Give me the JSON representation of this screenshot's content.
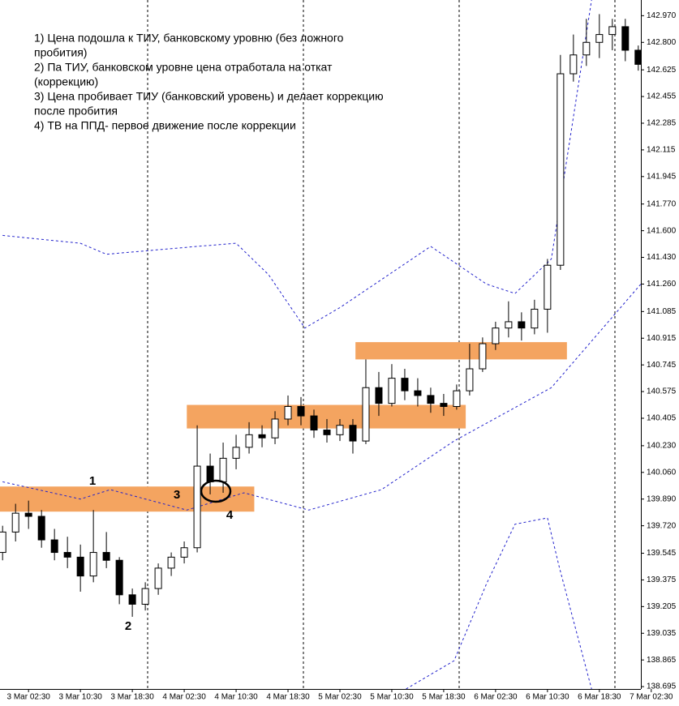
{
  "chart_data": {
    "type": "candlestick",
    "notes": [
      "1) Цена подошла к ТИУ, банковскому уровню (без ложного",
      "пробития)",
      "2) Па ТИУ, банковском уровне цена отработала на откат",
      "(коррекцию)",
      "3) Цена пробивает ТИУ (банковский уровень) и делает коррекцию",
      "после пробития",
      "4) ТВ на ППД- первое движение после коррекции"
    ],
    "markers": [
      "1",
      "2",
      "3",
      "4"
    ],
    "open": [
      139.55,
      139.68,
      139.8,
      139.78,
      139.63,
      139.55,
      139.52,
      139.4,
      139.55,
      139.5,
      139.28,
      139.22,
      139.32,
      139.45,
      139.52,
      139.58,
      140.1,
      140.0,
      140.15,
      140.22,
      140.3,
      140.28,
      140.4,
      140.48,
      140.42,
      140.33,
      140.3,
      140.36,
      140.26,
      140.6,
      140.5,
      140.66,
      140.58,
      140.55,
      140.5,
      140.48,
      140.58,
      140.72,
      140.88,
      140.98,
      141.02,
      140.98,
      141.1,
      141.38,
      142.6,
      142.72,
      142.8,
      142.85,
      142.9,
      142.75
    ],
    "high": [
      139.72,
      139.86,
      139.88,
      139.82,
      139.7,
      139.65,
      139.6,
      139.82,
      139.68,
      139.52,
      139.32,
      139.36,
      139.48,
      139.55,
      139.62,
      140.36,
      140.18,
      140.25,
      140.3,
      140.38,
      140.36,
      140.45,
      140.55,
      140.54,
      140.46,
      140.4,
      140.4,
      140.4,
      140.78,
      140.7,
      140.75,
      140.72,
      140.66,
      140.6,
      140.56,
      140.62,
      140.88,
      140.92,
      141.02,
      141.15,
      141.08,
      141.16,
      141.42,
      142.72,
      142.85,
      142.95,
      142.98,
      142.95,
      142.95,
      142.78
    ],
    "low": [
      139.5,
      139.62,
      139.7,
      139.58,
      139.5,
      139.45,
      139.3,
      139.36,
      139.45,
      139.22,
      139.14,
      139.18,
      139.28,
      139.4,
      139.48,
      139.55,
      139.92,
      139.93,
      140.08,
      140.18,
      140.22,
      140.24,
      140.36,
      140.36,
      140.28,
      140.25,
      140.26,
      140.18,
      140.24,
      140.42,
      140.48,
      140.52,
      140.48,
      140.44,
      140.42,
      140.46,
      140.55,
      140.7,
      140.84,
      140.92,
      140.9,
      140.94,
      140.95,
      141.35,
      142.55,
      142.65,
      142.7,
      142.75,
      142.68,
      142.62
    ],
    "close": [
      139.68,
      139.8,
      139.78,
      139.63,
      139.55,
      139.52,
      139.4,
      139.55,
      139.5,
      139.28,
      139.22,
      139.32,
      139.45,
      139.52,
      139.58,
      140.1,
      140.0,
      140.15,
      140.22,
      140.3,
      140.28,
      140.4,
      140.48,
      140.42,
      140.33,
      140.3,
      140.36,
      140.26,
      140.6,
      140.5,
      140.66,
      140.58,
      140.55,
      140.5,
      140.48,
      140.58,
      140.72,
      140.88,
      140.98,
      141.02,
      140.98,
      141.1,
      141.38,
      142.6,
      142.72,
      142.8,
      142.85,
      142.9,
      142.75,
      142.66
    ],
    "bands": [
      {
        "color": "#2222cc",
        "x": [
          0,
          6,
          8,
          15,
          18,
          20.5,
          23.3,
          26,
          33,
          37.3,
          39.5,
          42.3,
          45.4
        ],
        "values": [
          141.57,
          141.52,
          141.45,
          141.5,
          141.52,
          141.32,
          140.98,
          141.11,
          141.5,
          141.26,
          141.2,
          141.42,
          143.07
        ]
      },
      {
        "color": "#2222cc",
        "x": [
          0,
          6,
          8.3,
          14.2,
          18.6,
          23.6,
          29.2,
          34.8,
          42.3,
          49.2
        ],
        "values": [
          140.0,
          139.89,
          139.95,
          139.82,
          139.93,
          139.82,
          139.95,
          140.26,
          140.6,
          141.26
        ]
      },
      {
        "color": "#2222cc",
        "x": [
          31.1,
          34.8,
          37.3,
          39.5,
          42,
          42.9,
          45.4
        ],
        "values": [
          138.68,
          138.86,
          139.35,
          139.73,
          139.77,
          139.46,
          138.68
        ]
      }
    ],
    "zones": [
      {
        "color": "#f4a460",
        "from": 139.81,
        "to": 139.97,
        "start": -0.2,
        "end": 19.4
      },
      {
        "color": "#f4a460",
        "from": 140.34,
        "to": 140.49,
        "start": 14.2,
        "end": 35.7
      },
      {
        "color": "#f4a460",
        "from": 140.78,
        "to": 140.89,
        "start": 27.2,
        "end": 43.5
      }
    ],
    "xlim": [
      -0.2,
      49.2
    ],
    "ylim": [
      138.68,
      143.07
    ],
    "xticks": [
      {
        "value": 2,
        "label": "3 Mar 02:30"
      },
      {
        "value": 6,
        "label": "3 Mar 10:30"
      },
      {
        "value": 10,
        "label": "3 Mar 18:30"
      },
      {
        "value": 14,
        "label": "4 Mar 02:30"
      },
      {
        "value": 18,
        "label": "4 Mar 10:30"
      },
      {
        "value": 22,
        "label": "4 Mar 18:30"
      },
      {
        "value": 26,
        "label": "5 Mar 02:30"
      },
      {
        "value": 30,
        "label": "5 Mar 10:30"
      },
      {
        "value": 34,
        "label": "5 Mar 18:30"
      },
      {
        "value": 38,
        "label": "6 Mar 02:30"
      },
      {
        "value": 42,
        "label": "6 Mar 10:30"
      },
      {
        "value": 46,
        "label": "6 Mar 18:30"
      },
      {
        "value": 50,
        "label": "7 Mar 02:30"
      }
    ],
    "yticks": [
      {
        "value": 142.97,
        "label": "142.970"
      },
      {
        "value": 142.8,
        "label": "142.800"
      },
      142.625,
      142.455,
      142.285,
      142.115,
      141.945,
      {
        "value": 141.77,
        "label": "141.770"
      },
      {
        "value": 141.6,
        "label": "141.600"
      },
      {
        "value": 141.43,
        "label": "141.430"
      },
      {
        "value": 141.26,
        "label": "141.260"
      },
      141.085,
      140.915,
      140.745,
      140.575,
      140.405,
      {
        "value": 140.23,
        "label": "140.230"
      },
      {
        "value": 140.06,
        "label": "140.060"
      },
      {
        "value": 139.89,
        "label": "139.890"
      },
      {
        "value": 139.72,
        "label": "139.720"
      },
      139.545,
      139.375,
      139.205,
      139.035,
      138.865,
      138.695
    ]
  }
}
